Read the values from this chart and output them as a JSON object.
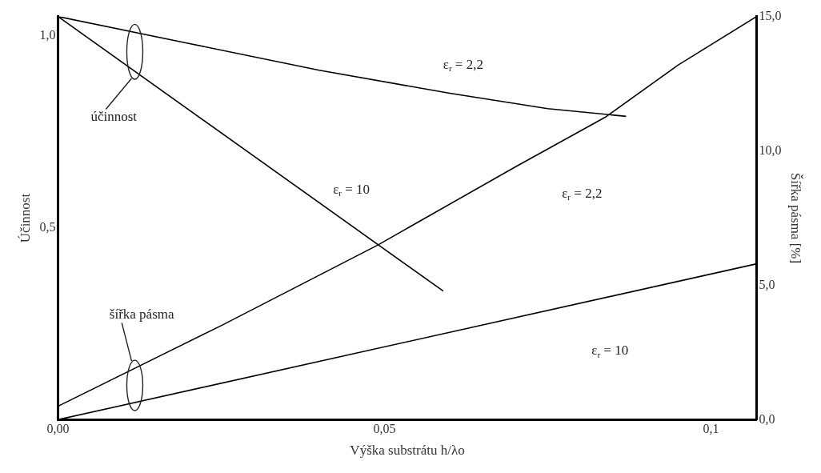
{
  "chart_data": {
    "type": "line",
    "xlabel": "Výška substrátu h/λo",
    "ylabel": "Účinnost",
    "y2label": "Šířka pásma [%]",
    "xlim": [
      0,
      0.107
    ],
    "xticks": [
      {
        "value": 0,
        "label": "0,00"
      },
      {
        "value": 0.05,
        "label": "0,05"
      },
      {
        "value": 0.1,
        "label": "0,1"
      }
    ],
    "ylim": [
      0,
      1.05
    ],
    "yticks": [
      {
        "value": 0.5,
        "label": "0,5"
      },
      {
        "value": 1,
        "label": "1,0"
      }
    ],
    "y2lim": [
      0,
      15
    ],
    "y2ticks": [
      {
        "value": 0,
        "label": "0,0"
      },
      {
        "value": 5,
        "label": "5,0"
      },
      {
        "value": 10,
        "label": "10,0"
      },
      {
        "value": 15,
        "label": "15,0"
      }
    ],
    "grid": false,
    "legend": false,
    "marker": "none",
    "line_style": "solid",
    "series": [
      {
        "color": "#000000",
        "x": [
          0,
          0.02,
          0.04,
          0.06,
          0.075,
          0.087
        ],
        "values": [
          1.05,
          0.98,
          0.91,
          0.85,
          0.81,
          0.79
        ]
      },
      {
        "color": "#000000",
        "x": [
          0,
          0.059
        ],
        "values": [
          1.05,
          0.335
        ]
      },
      {
        "color": "#000000",
        "axis": "y2",
        "x": [
          0,
          0.025,
          0.049,
          0.07,
          0.0838,
          0.095,
          0.107
        ],
        "values": [
          0.5,
          3.5,
          6.5,
          9.4,
          11.25,
          13.2,
          15
        ]
      },
      {
        "color": "#000000",
        "axis": "y2",
        "x": [
          0,
          0.107
        ],
        "values": [
          0,
          5.8
        ]
      }
    ],
    "annotations": [
      "ε$_{r}$ = 2,2",
      "ε$_{r}$ = 10",
      "ε$_{r}$ = 2,2",
      "ε$_{r}$ = 10",
      "účinnost",
      "šířka pásma"
    ]
  }
}
